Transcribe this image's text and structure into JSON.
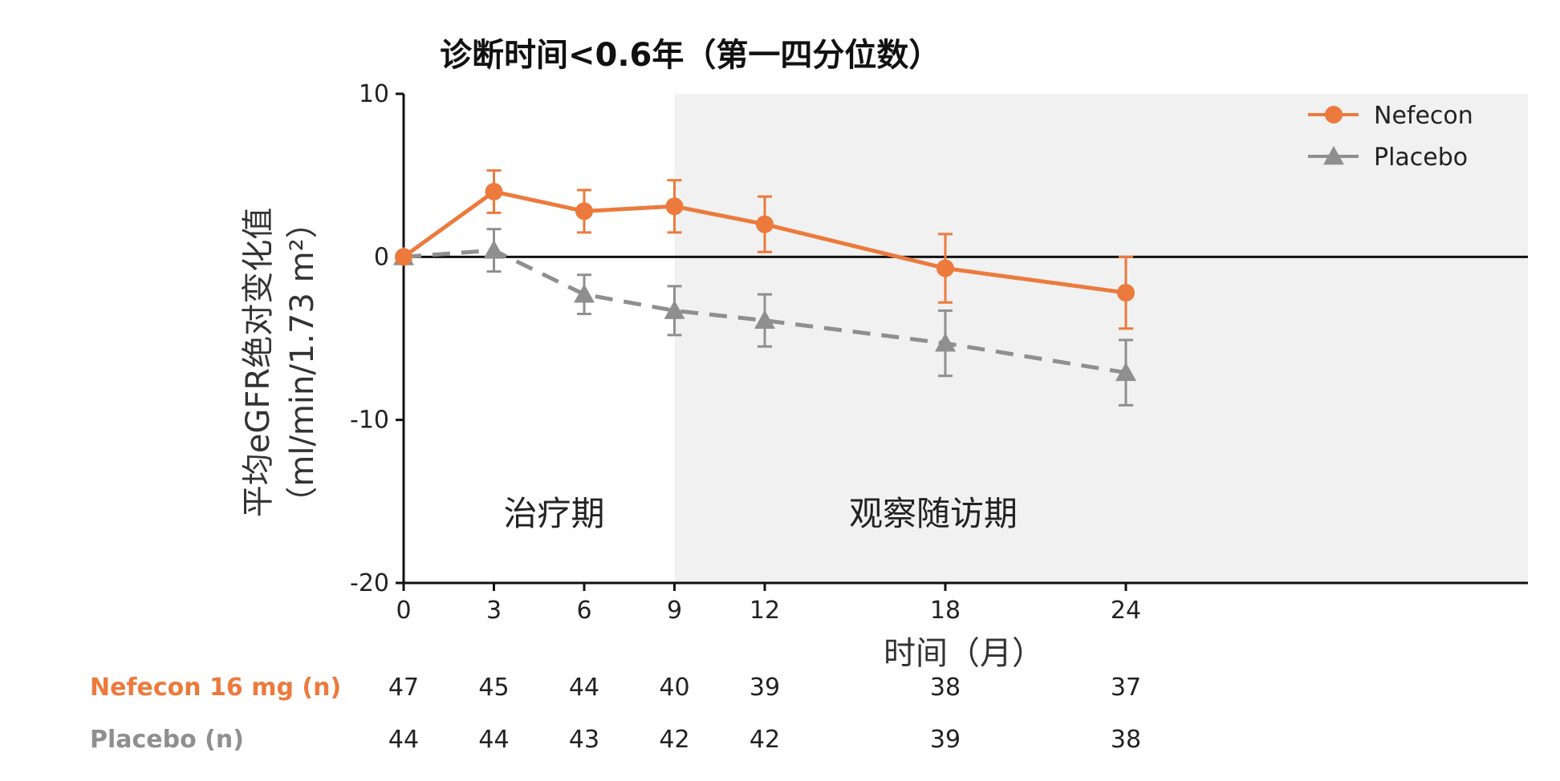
{
  "chart_data": {
    "type": "line",
    "title": "诊断时间<0.6年（第一四分位数）",
    "ylabel_line1": "平均eGFR绝对变化值",
    "ylabel_line2": "（ml/min/1.73 m²）",
    "xlabel": "时间（月）",
    "x": [
      0,
      3,
      6,
      9,
      12,
      18,
      24
    ],
    "xlim": [
      0,
      25.5
    ],
    "ylim": [
      -20,
      10
    ],
    "yticks": [
      10,
      0,
      -10,
      -20
    ],
    "reference_line": 0,
    "phases": [
      {
        "label": "治疗期",
        "x_center": 5
      },
      {
        "label": "观察随访期",
        "x_center": 17.6,
        "shaded_from": 9,
        "shade_color": "#f1f1f1"
      }
    ],
    "legend_position": "top-right",
    "series": [
      {
        "name": "Nefecon",
        "color": "#ec7a3c",
        "marker": "circle",
        "dashed": false,
        "values": [
          0,
          4.0,
          2.8,
          3.1,
          2.0,
          -0.7,
          -2.2
        ],
        "error": [
          0,
          1.3,
          1.3,
          1.6,
          1.7,
          2.1,
          2.2
        ]
      },
      {
        "name": "Placebo",
        "color": "#8f8f8f",
        "marker": "triangle",
        "dashed": true,
        "values": [
          0,
          0.4,
          -2.3,
          -3.3,
          -3.9,
          -5.3,
          -7.1
        ],
        "error": [
          0,
          1.3,
          1.2,
          1.5,
          1.6,
          2.0,
          2.0
        ]
      }
    ],
    "n_table": [
      {
        "label": "Nefecon 16 mg (n)",
        "color": "#ec7a3c",
        "values": [
          "47",
          "45",
          "44",
          "40",
          "39",
          "38",
          "37"
        ]
      },
      {
        "label": "Placebo (n)",
        "color": "#8f8f8f",
        "values": [
          "44",
          "44",
          "43",
          "42",
          "42",
          "39",
          "38"
        ]
      }
    ]
  }
}
